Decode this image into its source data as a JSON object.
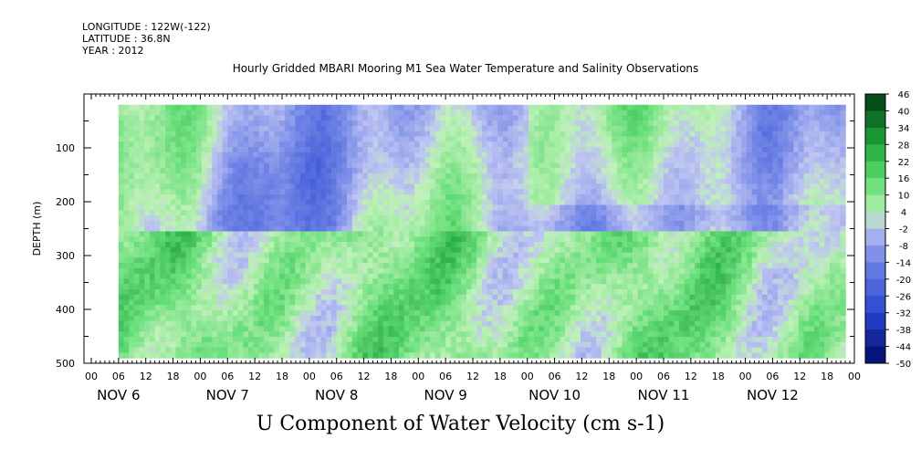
{
  "header": {
    "longitude": "LONGITUDE : 122W(-122)",
    "latitude": "LATITUDE : 36.8N",
    "year": "YEAR : 2012"
  },
  "title": "Hourly Gridded MBARI Mooring M1 Sea Water Temperature and Salinity Observations",
  "variable_label": "U Component of Water Velocity (cm s-1)",
  "colors": {
    "negative_dark": "#001a80",
    "negative_light": "#b8bff0",
    "positive_light": "#b8f0b0",
    "positive_dark": "#004d1a"
  },
  "chart_data": {
    "type": "heatmap",
    "title": "Hourly Gridded MBARI Mooring M1 Sea Water Temperature and Salinity Observations",
    "xlabel": "",
    "ylabel": "DEPTH (m)",
    "x_unit": "hour",
    "x_range_days": [
      "NOV 6",
      "NOV 12"
    ],
    "day_labels": [
      "NOV 6",
      "NOV 7",
      "NOV 8",
      "NOV 9",
      "NOV 10",
      "NOV 11",
      "NOV 12"
    ],
    "hour_ticks": [
      "00",
      "06",
      "12",
      "18"
    ],
    "y_ticks": [
      100,
      200,
      300,
      400,
      500
    ],
    "ylim": [
      500,
      0
    ],
    "data_depth_range": [
      20,
      490
    ],
    "colorbar_label": "U Component of Water Velocity (cm s-1)",
    "colorbar_levels": [
      46,
      40,
      34,
      28,
      22,
      16,
      10,
      4,
      -2,
      -8,
      -14,
      -20,
      -26,
      -32,
      -38,
      -44,
      -50
    ],
    "colorbar_range": [
      -50,
      50
    ],
    "value_summary": {
      "upper_layer": "mostly -14 to 16, alternating negative and positive bands",
      "lower_layer": "mostly 4 to 22 with negative patches",
      "overall_range_estimate": [
        -20,
        28
      ]
    },
    "grid": false,
    "legend": "right colorbar"
  }
}
